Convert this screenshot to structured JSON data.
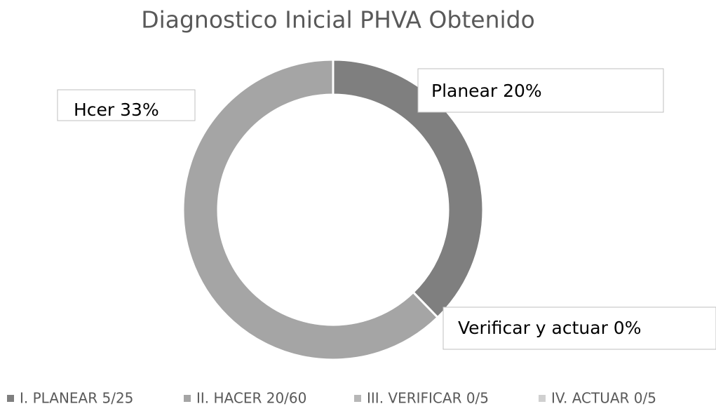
{
  "chart_data": {
    "type": "donut",
    "title": "Diagnostico Inicial PHVA Obtenido",
    "categories": [
      "I. PLANEAR 5/25",
      "II. HACER 20/60",
      "III. VERIFICAR 0/5",
      "IV. ACTUAR 0/5"
    ],
    "values": [
      20,
      33,
      0,
      0
    ],
    "value_labels": [
      "Planear 20%",
      "Hcer 33%",
      "Verificar y actuar 0%",
      null
    ],
    "colors": [
      "#7f7f7f",
      "#a5a5a5",
      "#b7b7b7",
      "#d0d0d0"
    ],
    "legend": "bottom"
  }
}
